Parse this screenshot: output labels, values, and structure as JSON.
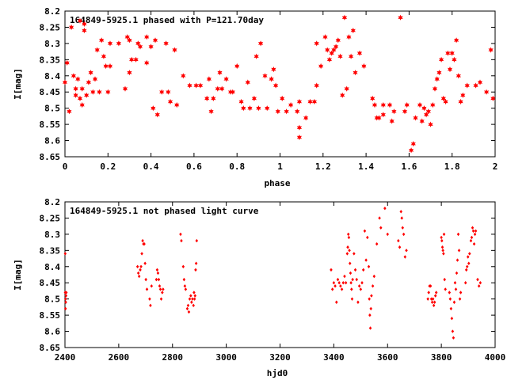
{
  "chart_data": [
    {
      "type": "scatter",
      "title": "164849-5925.1 phased with P=121.70day",
      "xlabel": "phase",
      "ylabel": "I[mag]",
      "xlim": [
        0,
        2
      ],
      "ylim": [
        8.2,
        8.65
      ],
      "y_inverted": true,
      "marker": "filled-star",
      "color": "#ff0000",
      "x_ticks": [
        "0",
        "0.2",
        "0.4",
        "0.6",
        "0.8",
        "1",
        "1.2",
        "1.4",
        "1.6",
        "1.8",
        "2"
      ],
      "y_ticks": [
        "8.2",
        "8.25",
        "8.3",
        "8.35",
        "8.4",
        "8.45",
        "8.5",
        "8.55",
        "8.6",
        "8.65"
      ],
      "points": [
        [
          0.0,
          8.42
        ],
        [
          0.01,
          8.36
        ],
        [
          0.02,
          8.51
        ],
        [
          0.03,
          8.25
        ],
        [
          0.04,
          8.4
        ],
        [
          0.05,
          8.46
        ],
        [
          0.05,
          8.44
        ],
        [
          0.06,
          8.41
        ],
        [
          0.07,
          8.23
        ],
        [
          0.07,
          8.47
        ],
        [
          0.08,
          8.44
        ],
        [
          0.08,
          8.49
        ],
        [
          0.09,
          8.24
        ],
        [
          0.09,
          8.26
        ],
        [
          0.1,
          8.46
        ],
        [
          0.11,
          8.42
        ],
        [
          0.12,
          8.39
        ],
        [
          0.13,
          8.45
        ],
        [
          0.14,
          8.41
        ],
        [
          0.15,
          8.32
        ],
        [
          0.16,
          8.45
        ],
        [
          0.17,
          8.29
        ],
        [
          0.18,
          8.34
        ],
        [
          0.19,
          8.37
        ],
        [
          0.2,
          8.45
        ],
        [
          0.21,
          8.37
        ],
        [
          0.21,
          8.3
        ],
        [
          0.25,
          8.3
        ],
        [
          0.28,
          8.44
        ],
        [
          0.29,
          8.28
        ],
        [
          0.3,
          8.39
        ],
        [
          0.3,
          8.29
        ],
        [
          0.31,
          8.35
        ],
        [
          0.33,
          8.35
        ],
        [
          0.34,
          8.3
        ],
        [
          0.35,
          8.31
        ],
        [
          0.38,
          8.28
        ],
        [
          0.38,
          8.36
        ],
        [
          0.4,
          8.31
        ],
        [
          0.41,
          8.5
        ],
        [
          0.42,
          8.29
        ],
        [
          0.43,
          8.52
        ],
        [
          0.45,
          8.45
        ],
        [
          0.47,
          8.3
        ],
        [
          0.48,
          8.45
        ],
        [
          0.49,
          8.48
        ],
        [
          0.51,
          8.32
        ],
        [
          0.52,
          8.49
        ],
        [
          0.55,
          8.4
        ],
        [
          0.58,
          8.43
        ],
        [
          0.61,
          8.43
        ],
        [
          0.63,
          8.43
        ],
        [
          0.66,
          8.47
        ],
        [
          0.67,
          8.41
        ],
        [
          0.68,
          8.51
        ],
        [
          0.69,
          8.47
        ],
        [
          0.71,
          8.44
        ],
        [
          0.72,
          8.39
        ],
        [
          0.73,
          8.44
        ],
        [
          0.75,
          8.41
        ],
        [
          0.77,
          8.45
        ],
        [
          0.78,
          8.45
        ],
        [
          0.8,
          8.37
        ],
        [
          0.82,
          8.48
        ],
        [
          0.83,
          8.5
        ],
        [
          0.85,
          8.42
        ],
        [
          0.86,
          8.5
        ],
        [
          0.88,
          8.47
        ],
        [
          0.89,
          8.34
        ],
        [
          0.9,
          8.5
        ],
        [
          0.91,
          8.3
        ],
        [
          0.93,
          8.4
        ],
        [
          0.94,
          8.5
        ],
        [
          0.96,
          8.41
        ],
        [
          0.97,
          8.38
        ],
        [
          0.98,
          8.43
        ],
        [
          0.99,
          8.51
        ],
        [
          1.01,
          8.47
        ],
        [
          1.03,
          8.51
        ],
        [
          1.05,
          8.49
        ],
        [
          1.08,
          8.51
        ],
        [
          1.09,
          8.48
        ],
        [
          1.09,
          8.56
        ],
        [
          1.09,
          8.59
        ],
        [
          1.12,
          8.53
        ],
        [
          1.14,
          8.48
        ],
        [
          1.16,
          8.48
        ],
        [
          1.17,
          8.43
        ],
        [
          1.17,
          8.3
        ],
        [
          1.19,
          8.37
        ],
        [
          1.21,
          8.28
        ],
        [
          1.22,
          8.32
        ],
        [
          1.23,
          8.35
        ],
        [
          1.24,
          8.33
        ],
        [
          1.25,
          8.32
        ],
        [
          1.26,
          8.31
        ],
        [
          1.27,
          8.29
        ],
        [
          1.28,
          8.34
        ],
        [
          1.29,
          8.46
        ],
        [
          1.3,
          8.22
        ],
        [
          1.31,
          8.44
        ],
        [
          1.32,
          8.28
        ],
        [
          1.33,
          8.34
        ],
        [
          1.34,
          8.26
        ],
        [
          1.35,
          8.39
        ],
        [
          1.37,
          8.33
        ],
        [
          1.39,
          8.37
        ],
        [
          1.43,
          8.47
        ],
        [
          1.44,
          8.49
        ],
        [
          1.45,
          8.53
        ],
        [
          1.46,
          8.53
        ],
        [
          1.48,
          8.52
        ],
        [
          1.48,
          8.49
        ],
        [
          1.51,
          8.49
        ],
        [
          1.52,
          8.54
        ],
        [
          1.53,
          8.51
        ],
        [
          1.56,
          8.22
        ],
        [
          1.58,
          8.51
        ],
        [
          1.59,
          8.49
        ],
        [
          1.61,
          8.63
        ],
        [
          1.62,
          8.61
        ],
        [
          1.63,
          8.53
        ],
        [
          1.65,
          8.49
        ],
        [
          1.66,
          8.54
        ],
        [
          1.67,
          8.5
        ],
        [
          1.68,
          8.52
        ],
        [
          1.69,
          8.51
        ],
        [
          1.7,
          8.55
        ],
        [
          1.71,
          8.49
        ],
        [
          1.72,
          8.44
        ],
        [
          1.73,
          8.41
        ],
        [
          1.74,
          8.39
        ],
        [
          1.75,
          8.35
        ],
        [
          1.76,
          8.47
        ],
        [
          1.77,
          8.48
        ],
        [
          1.78,
          8.33
        ],
        [
          1.79,
          8.38
        ],
        [
          1.8,
          8.33
        ],
        [
          1.81,
          8.35
        ],
        [
          1.82,
          8.29
        ],
        [
          1.83,
          8.4
        ],
        [
          1.84,
          8.48
        ],
        [
          1.85,
          8.46
        ],
        [
          1.87,
          8.43
        ],
        [
          1.91,
          8.43
        ],
        [
          1.93,
          8.42
        ],
        [
          1.96,
          8.45
        ],
        [
          1.98,
          8.32
        ],
        [
          1.99,
          8.47
        ]
      ]
    },
    {
      "type": "scatter",
      "title": "164849-5925.1 not phased light curve",
      "xlabel": "hjd0",
      "ylabel": "I[mag]",
      "xlim": [
        2400,
        4000
      ],
      "ylim": [
        8.2,
        8.65
      ],
      "y_inverted": true,
      "marker": "small-diamond",
      "color": "#ff0000",
      "x_ticks": [
        "2400",
        "2600",
        "2800",
        "3000",
        "3200",
        "3400",
        "3600",
        "3800",
        "4000"
      ],
      "y_ticks": [
        "8.2",
        "8.25",
        "8.3",
        "8.35",
        "8.4",
        "8.45",
        "8.5",
        "8.55",
        "8.6",
        "8.65"
      ],
      "points": [
        [
          2401,
          8.36
        ],
        [
          2401,
          8.48
        ],
        [
          2402,
          8.5
        ],
        [
          2402,
          8.53
        ],
        [
          2403,
          8.51
        ],
        [
          2404,
          8.49
        ],
        [
          2405,
          8.48
        ],
        [
          2670,
          8.4
        ],
        [
          2673,
          8.42
        ],
        [
          2676,
          8.43
        ],
        [
          2680,
          8.41
        ],
        [
          2683,
          8.4
        ],
        [
          2686,
          8.36
        ],
        [
          2689,
          8.32
        ],
        [
          2692,
          8.33
        ],
        [
          2695,
          8.33
        ],
        [
          2698,
          8.39
        ],
        [
          2701,
          8.44
        ],
        [
          2705,
          8.47
        ],
        [
          2715,
          8.5
        ],
        [
          2718,
          8.52
        ],
        [
          2722,
          8.46
        ],
        [
          2740,
          8.44
        ],
        [
          2743,
          8.41
        ],
        [
          2746,
          8.42
        ],
        [
          2749,
          8.44
        ],
        [
          2752,
          8.46
        ],
        [
          2755,
          8.47
        ],
        [
          2758,
          8.5
        ],
        [
          2762,
          8.48
        ],
        [
          2765,
          8.47
        ],
        [
          2830,
          8.3
        ],
        [
          2833,
          8.32
        ],
        [
          2840,
          8.4
        ],
        [
          2843,
          8.44
        ],
        [
          2846,
          8.46
        ],
        [
          2849,
          8.47
        ],
        [
          2855,
          8.53
        ],
        [
          2858,
          8.52
        ],
        [
          2861,
          8.54
        ],
        [
          2864,
          8.5
        ],
        [
          2868,
          8.49
        ],
        [
          2871,
          8.51
        ],
        [
          2874,
          8.5
        ],
        [
          2878,
          8.52
        ],
        [
          2880,
          8.48
        ],
        [
          2882,
          8.5
        ],
        [
          2884,
          8.49
        ],
        [
          2886,
          8.41
        ],
        [
          2888,
          8.39
        ],
        [
          2890,
          8.32
        ],
        [
          3390,
          8.41
        ],
        [
          3395,
          8.47
        ],
        [
          3400,
          8.45
        ],
        [
          3405,
          8.46
        ],
        [
          3410,
          8.51
        ],
        [
          3415,
          8.44
        ],
        [
          3420,
          8.45
        ],
        [
          3425,
          8.46
        ],
        [
          3430,
          8.47
        ],
        [
          3435,
          8.45
        ],
        [
          3440,
          8.43
        ],
        [
          3445,
          8.45
        ],
        [
          3450,
          8.36
        ],
        [
          3452,
          8.34
        ],
        [
          3454,
          8.3
        ],
        [
          3456,
          8.31
        ],
        [
          3458,
          8.35
        ],
        [
          3460,
          8.39
        ],
        [
          3462,
          8.42
        ],
        [
          3464,
          8.45
        ],
        [
          3466,
          8.47
        ],
        [
          3468,
          8.5
        ],
        [
          3470,
          8.44
        ],
        [
          3475,
          8.36
        ],
        [
          3480,
          8.41
        ],
        [
          3485,
          8.44
        ],
        [
          3490,
          8.51
        ],
        [
          3495,
          8.46
        ],
        [
          3500,
          8.47
        ],
        [
          3505,
          8.45
        ],
        [
          3510,
          8.41
        ],
        [
          3515,
          8.29
        ],
        [
          3520,
          8.38
        ],
        [
          3525,
          8.31
        ],
        [
          3530,
          8.4
        ],
        [
          3532,
          8.5
        ],
        [
          3534,
          8.55
        ],
        [
          3536,
          8.59
        ],
        [
          3538,
          8.53
        ],
        [
          3540,
          8.49
        ],
        [
          3545,
          8.46
        ],
        [
          3550,
          8.43
        ],
        [
          3560,
          8.33
        ],
        [
          3570,
          8.25
        ],
        [
          3575,
          8.28
        ],
        [
          3590,
          8.22
        ],
        [
          3600,
          8.3
        ],
        [
          3640,
          8.32
        ],
        [
          3645,
          8.34
        ],
        [
          3650,
          8.23
        ],
        [
          3653,
          8.25
        ],
        [
          3656,
          8.28
        ],
        [
          3660,
          8.3
        ],
        [
          3665,
          8.37
        ],
        [
          3670,
          8.35
        ],
        [
          3750,
          8.5
        ],
        [
          3753,
          8.48
        ],
        [
          3756,
          8.46
        ],
        [
          3760,
          8.46
        ],
        [
          3763,
          8.5
        ],
        [
          3766,
          8.51
        ],
        [
          3769,
          8.5
        ],
        [
          3772,
          8.52
        ],
        [
          3775,
          8.51
        ],
        [
          3778,
          8.49
        ],
        [
          3781,
          8.48
        ],
        [
          3800,
          8.31
        ],
        [
          3802,
          8.32
        ],
        [
          3804,
          8.34
        ],
        [
          3806,
          8.35
        ],
        [
          3808,
          8.36
        ],
        [
          3810,
          8.3
        ],
        [
          3812,
          8.44
        ],
        [
          3815,
          8.47
        ],
        [
          3830,
          8.48
        ],
        [
          3833,
          8.5
        ],
        [
          3836,
          8.53
        ],
        [
          3839,
          8.56
        ],
        [
          3842,
          8.6
        ],
        [
          3845,
          8.62
        ],
        [
          3848,
          8.51
        ],
        [
          3851,
          8.45
        ],
        [
          3854,
          8.47
        ],
        [
          3857,
          8.42
        ],
        [
          3860,
          8.38
        ],
        [
          3863,
          8.3
        ],
        [
          3866,
          8.35
        ],
        [
          3869,
          8.5
        ],
        [
          3872,
          8.48
        ],
        [
          3890,
          8.45
        ],
        [
          3893,
          8.41
        ],
        [
          3896,
          8.4
        ],
        [
          3899,
          8.37
        ],
        [
          3902,
          8.39
        ],
        [
          3905,
          8.36
        ],
        [
          3910,
          8.32
        ],
        [
          3913,
          8.31
        ],
        [
          3916,
          8.28
        ],
        [
          3919,
          8.29
        ],
        [
          3922,
          8.33
        ],
        [
          3925,
          8.3
        ],
        [
          3928,
          8.29
        ],
        [
          3935,
          8.44
        ],
        [
          3940,
          8.46
        ],
        [
          3945,
          8.45
        ]
      ]
    }
  ]
}
